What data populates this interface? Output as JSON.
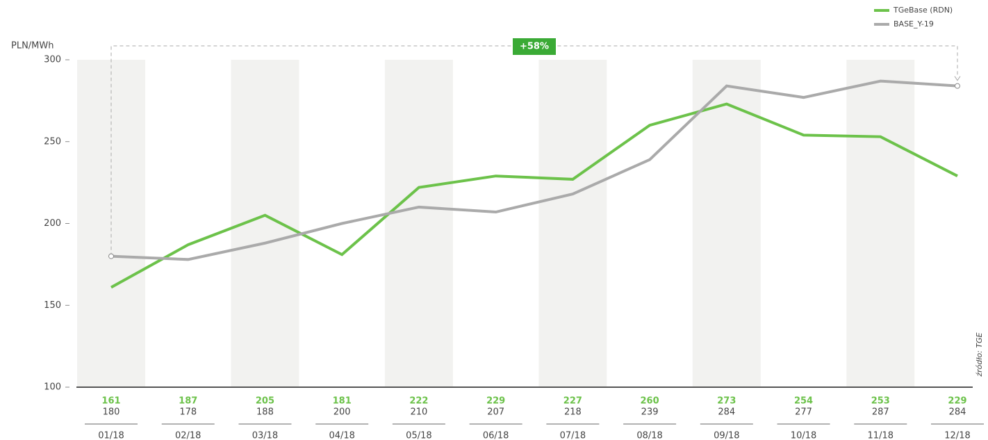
{
  "chart_data": {
    "type": "line",
    "y_label": "PLN/MWh",
    "annotation": "+58%",
    "source": "źródło: TGE",
    "categories": [
      "01/18",
      "02/18",
      "03/18",
      "04/18",
      "05/18",
      "06/18",
      "07/18",
      "08/18",
      "09/18",
      "10/18",
      "11/18",
      "12/18"
    ],
    "series": [
      {
        "name": "TGeBase (RDN)",
        "color": "#6cc24a",
        "values": [
          161,
          187,
          205,
          181,
          222,
          229,
          227,
          260,
          273,
          254,
          253,
          229
        ]
      },
      {
        "name": "BASE_Y-19",
        "color": "#aaaaaa",
        "values": [
          180,
          178,
          188,
          200,
          210,
          207,
          218,
          239,
          284,
          277,
          287,
          284
        ]
      }
    ],
    "ylim": [
      100,
      300
    ],
    "yticks": [
      100,
      150,
      200,
      250,
      300
    ],
    "legend": "top-right",
    "banded": true
  }
}
